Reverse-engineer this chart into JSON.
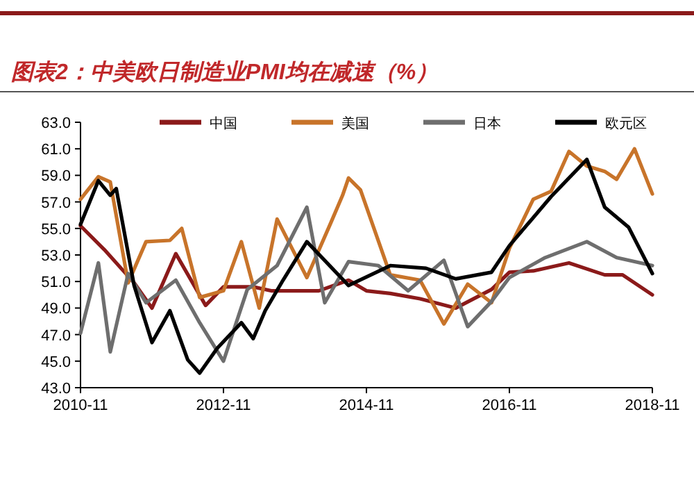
{
  "chart_data": {
    "type": "line",
    "title": "图表2：中美欧日制造业PMI均在减速（%）",
    "legend": "top",
    "line_style": "solid",
    "xlim": [
      "2010-11",
      "2018-11"
    ],
    "xticks": [
      "2010-11",
      "2012-11",
      "2014-11",
      "2016-11",
      "2018-11"
    ],
    "ylim": [
      43,
      63
    ],
    "yticks": [
      {
        "value": 43,
        "label": "43.0"
      },
      {
        "value": 45,
        "label": "45.0"
      },
      {
        "value": 47,
        "label": "47.0"
      },
      {
        "value": 49,
        "label": "49.0"
      },
      {
        "value": 51,
        "label": "51.0"
      },
      {
        "value": 53,
        "label": "53.0"
      },
      {
        "value": 55,
        "label": "55.0"
      },
      {
        "value": 57,
        "label": "57.0"
      },
      {
        "value": 59,
        "label": "59.0"
      },
      {
        "value": 61,
        "label": "61.0"
      },
      {
        "value": 63,
        "label": "63.0"
      }
    ],
    "series": [
      {
        "name": "中国",
        "color": "#8b1a1a",
        "x": [
          "2010-11",
          "2011-03",
          "2011-08",
          "2011-11",
          "2012-03",
          "2012-08",
          "2012-11",
          "2013-04",
          "2013-07",
          "2014-03",
          "2014-08",
          "2014-11",
          "2015-03",
          "2015-08",
          "2016-02",
          "2016-08",
          "2016-11",
          "2017-03",
          "2017-09",
          "2018-03",
          "2018-06",
          "2018-11"
        ],
        "values": [
          55.2,
          53.4,
          50.9,
          49.0,
          53.1,
          49.2,
          50.6,
          50.6,
          50.3,
          50.3,
          51.1,
          50.3,
          50.1,
          49.7,
          49.0,
          50.4,
          51.7,
          51.8,
          52.4,
          51.5,
          51.5,
          50.0
        ]
      },
      {
        "name": "美国",
        "color": "#c8742a",
        "x": [
          "2010-11",
          "2011-02",
          "2011-04",
          "2011-07",
          "2011-10",
          "2012-02",
          "2012-04",
          "2012-07",
          "2012-11",
          "2013-02",
          "2013-05",
          "2013-08",
          "2014-01",
          "2014-05",
          "2014-07",
          "2014-08",
          "2014-10",
          "2015-03",
          "2015-08",
          "2015-12",
          "2016-04",
          "2016-08",
          "2016-11",
          "2017-03",
          "2017-06",
          "2017-09",
          "2017-12",
          "2018-03",
          "2018-05",
          "2018-08",
          "2018-11"
        ],
        "values": [
          57.2,
          58.9,
          58.5,
          50.9,
          54.0,
          54.1,
          55.0,
          49.8,
          50.3,
          54.0,
          49.0,
          55.7,
          51.3,
          55.4,
          57.5,
          58.8,
          57.9,
          51.5,
          51.1,
          47.8,
          50.8,
          49.4,
          53.5,
          57.2,
          57.8,
          60.8,
          59.7,
          59.3,
          58.7,
          61.0,
          57.6
        ]
      },
      {
        "name": "日本",
        "color": "#6e6e6e",
        "x": [
          "2010-11",
          "2011-02",
          "2011-04",
          "2011-07",
          "2011-10",
          "2012-03",
          "2012-07",
          "2012-11",
          "2013-03",
          "2013-08",
          "2014-01",
          "2014-04",
          "2014-08",
          "2015-01",
          "2015-06",
          "2015-12",
          "2016-04",
          "2016-08",
          "2016-11",
          "2017-05",
          "2017-12",
          "2018-05",
          "2018-11"
        ],
        "values": [
          47.1,
          52.4,
          45.7,
          51.6,
          49.4,
          51.1,
          47.9,
          45.0,
          50.4,
          52.2,
          56.6,
          49.4,
          52.5,
          52.2,
          50.3,
          52.6,
          47.6,
          49.5,
          51.3,
          52.8,
          54.0,
          52.8,
          52.2
        ]
      },
      {
        "name": "欧元区",
        "color": "#000000",
        "x": [
          "2010-11",
          "2011-02",
          "2011-04",
          "2011-05",
          "2011-08",
          "2011-11",
          "2012-02",
          "2012-05",
          "2012-07",
          "2012-10",
          "2013-02",
          "2013-04",
          "2013-06",
          "2013-09",
          "2014-01",
          "2014-08",
          "2015-03",
          "2015-09",
          "2016-02",
          "2016-08",
          "2016-11",
          "2017-06",
          "2017-12",
          "2018-03",
          "2018-07",
          "2018-11"
        ],
        "values": [
          55.3,
          58.6,
          57.5,
          58.0,
          50.7,
          46.4,
          48.8,
          45.1,
          44.1,
          46.0,
          47.9,
          46.7,
          48.8,
          51.1,
          54.0,
          50.7,
          52.2,
          52.0,
          51.2,
          51.7,
          53.7,
          57.4,
          60.2,
          56.6,
          55.1,
          51.6
        ]
      }
    ]
  }
}
